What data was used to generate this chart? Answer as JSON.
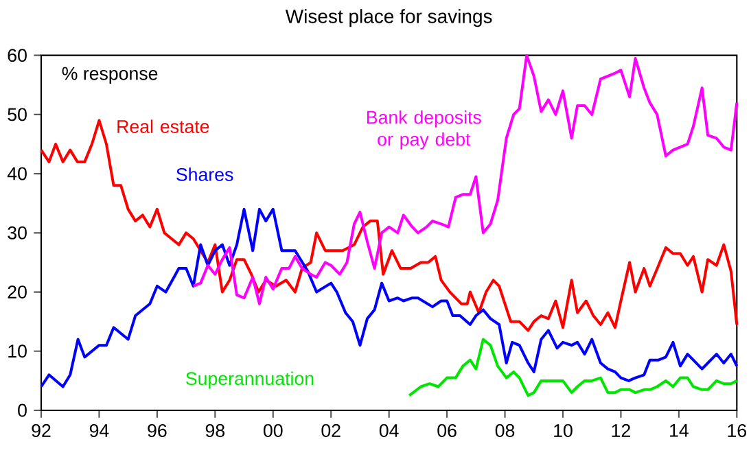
{
  "chart_data": {
    "type": "line",
    "title": "Wisest place for savings",
    "ylabel": "% response",
    "xlim": [
      1992,
      2016
    ],
    "ylim": [
      0,
      60
    ],
    "xticks": [
      {
        "value": 1992,
        "label": "92"
      },
      {
        "value": 1994,
        "label": "94"
      },
      {
        "value": 1996,
        "label": "96"
      },
      {
        "value": 1998,
        "label": "98"
      },
      {
        "value": 2000,
        "label": "00"
      },
      {
        "value": 2002,
        "label": "02"
      },
      {
        "value": 2004,
        "label": "04"
      },
      {
        "value": 2006,
        "label": "06"
      },
      {
        "value": 2008,
        "label": "08"
      },
      {
        "value": 2010,
        "label": "10"
      },
      {
        "value": 2012,
        "label": "12"
      },
      {
        "value": 2014,
        "label": "14"
      },
      {
        "value": 2016,
        "label": "16"
      }
    ],
    "yticks": [
      0,
      10,
      20,
      30,
      40,
      50,
      60
    ],
    "grid": false,
    "marker": "none",
    "line_style": "solid",
    "series": [
      {
        "name": "Real estate",
        "color": "#ff0000",
        "x": [
          1992.0,
          1992.27,
          1992.5,
          1992.75,
          1993.0,
          1993.25,
          1993.5,
          1993.75,
          1994.0,
          1994.25,
          1994.5,
          1994.75,
          1995.0,
          1995.25,
          1995.5,
          1995.75,
          1996.0,
          1996.25,
          1996.5,
          1996.75,
          1997.0,
          1997.25,
          1997.5,
          1997.75,
          1998.0,
          1998.25,
          1998.5,
          1998.75,
          1999.0,
          1999.25,
          1999.5,
          1999.75,
          2000.1,
          2000.45,
          2000.76,
          2001.0,
          2001.3,
          2001.5,
          2001.8,
          2002.05,
          2002.4,
          2002.8,
          2003.1,
          2003.35,
          2003.6,
          2003.8,
          2004.1,
          2004.4,
          2004.75,
          2005.1,
          2005.35,
          2005.6,
          2005.8,
          2006.1,
          2006.5,
          2006.7,
          2006.8,
          2007.1,
          2007.35,
          2007.6,
          2007.8,
          2008.0,
          2008.2,
          2008.5,
          2008.8,
          2009.0,
          2009.25,
          2009.5,
          2009.75,
          2010.0,
          2010.3,
          2010.5,
          2010.8,
          2011.05,
          2011.3,
          2011.55,
          2011.8,
          2012.0,
          2012.3,
          2012.5,
          2012.8,
          2013.0,
          2013.3,
          2013.55,
          2013.8,
          2014.05,
          2014.3,
          2014.5,
          2014.8,
          2015.0,
          2015.3,
          2015.55,
          2015.8,
          2016.0
        ],
        "values": [
          44,
          42,
          45,
          42,
          44,
          42,
          42,
          45,
          49,
          45,
          38,
          38,
          34,
          32,
          33,
          31,
          34,
          30,
          29,
          28,
          30,
          29,
          27,
          25,
          28,
          20,
          22,
          25.5,
          25.5,
          23,
          20,
          22,
          21,
          22,
          20,
          24,
          25,
          30,
          27,
          27,
          27,
          28,
          31,
          32,
          32,
          23,
          27,
          24,
          24,
          25,
          25,
          26,
          22,
          20,
          18,
          18,
          20,
          16.5,
          20,
          22,
          21,
          18,
          15,
          15,
          13.5,
          15,
          16,
          15.5,
          18.5,
          14,
          22,
          16.5,
          18.5,
          16,
          14.5,
          16.5,
          14,
          18.5,
          25,
          20,
          24,
          21,
          24.5,
          27.5,
          26.5,
          26.5,
          24.5,
          26,
          20,
          25.5,
          24.5,
          28,
          23.5,
          14.5
        ]
      },
      {
        "name": "Shares",
        "color": "#0000ff",
        "x": [
          1992.0,
          1992.27,
          1992.75,
          1993.0,
          1993.27,
          1993.5,
          1994.0,
          1994.25,
          1994.5,
          1995.0,
          1995.25,
          1995.75,
          1996.0,
          1996.3,
          1996.75,
          1997.0,
          1997.25,
          1997.5,
          1997.75,
          1998.0,
          1998.25,
          1998.5,
          1998.75,
          1999.0,
          1999.3,
          1999.53,
          1999.75,
          2000.0,
          2000.3,
          2000.76,
          2001.2,
          2001.5,
          2002.0,
          2002.2,
          2002.5,
          2002.75,
          2003.0,
          2003.25,
          2003.5,
          2003.75,
          2004.0,
          2004.3,
          2004.5,
          2004.8,
          2005.0,
          2005.5,
          2005.8,
          2006.0,
          2006.2,
          2006.45,
          2006.8,
          2007.0,
          2007.25,
          2007.5,
          2007.8,
          2008.05,
          2008.25,
          2008.5,
          2008.8,
          2009.0,
          2009.25,
          2009.5,
          2009.8,
          2010.0,
          2010.3,
          2010.5,
          2010.75,
          2011.0,
          2011.3,
          2011.55,
          2011.8,
          2012.0,
          2012.27,
          2012.5,
          2012.8,
          2013.0,
          2013.3,
          2013.55,
          2013.8,
          2014.05,
          2014.3,
          2014.5,
          2014.8,
          2015.0,
          2015.3,
          2015.55,
          2015.8,
          2016.0
        ],
        "values": [
          4,
          6,
          4,
          6,
          12,
          9,
          11,
          11,
          14,
          12,
          16,
          18,
          21,
          20,
          24,
          24,
          21,
          28,
          24.5,
          27,
          28,
          24.5,
          28,
          34,
          27,
          34,
          32,
          34,
          27,
          27,
          23.5,
          20,
          21.5,
          20,
          16.5,
          15,
          11,
          15.5,
          17,
          21.5,
          18.5,
          19,
          18.5,
          19,
          19,
          17.5,
          18.5,
          18.5,
          16,
          16,
          14.5,
          16,
          17,
          15.5,
          14.5,
          8,
          11.5,
          11,
          8,
          6.5,
          12,
          13.5,
          10.5,
          11.5,
          11,
          11.5,
          9.5,
          12,
          8,
          7,
          6.5,
          5.5,
          5,
          5.5,
          6,
          8.5,
          8.5,
          9,
          11.5,
          7.5,
          9.5,
          8.5,
          7,
          8,
          9.5,
          8,
          9.5,
          7.5
        ]
      },
      {
        "name": "Bank deposits or pay debt",
        "color": "#ff00ff",
        "x": [
          1997.25,
          1997.5,
          1997.75,
          1998.0,
          1998.25,
          1998.5,
          1998.75,
          1999.0,
          1999.3,
          1999.53,
          1999.75,
          2000.0,
          2000.3,
          2000.55,
          2000.76,
          2001.0,
          2001.3,
          2001.5,
          2001.8,
          2002.0,
          2002.3,
          2002.55,
          2002.8,
          2003.0,
          2003.25,
          2003.5,
          2003.75,
          2004.0,
          2004.3,
          2004.5,
          2004.8,
          2005.0,
          2005.3,
          2005.5,
          2005.8,
          2006.05,
          2006.3,
          2006.55,
          2006.8,
          2007.0,
          2007.25,
          2007.5,
          2007.75,
          2008.05,
          2008.3,
          2008.5,
          2008.75,
          2009.0,
          2009.25,
          2009.5,
          2009.75,
          2010.0,
          2010.3,
          2010.5,
          2010.75,
          2011.0,
          2011.3,
          2011.55,
          2011.8,
          2012.0,
          2012.3,
          2012.5,
          2012.8,
          2013.0,
          2013.25,
          2013.55,
          2013.8,
          2014.05,
          2014.3,
          2014.5,
          2014.8,
          2015.0,
          2015.3,
          2015.55,
          2015.8,
          2016.0
        ],
        "values": [
          21,
          21.5,
          24.5,
          23,
          25.5,
          27.5,
          19.5,
          19,
          22.5,
          18,
          22.5,
          20.5,
          24,
          24,
          26,
          24,
          23,
          22.5,
          25,
          24.5,
          23,
          25,
          31.5,
          33.5,
          28.5,
          24,
          30,
          31,
          30,
          33,
          31,
          30,
          31,
          32,
          31.5,
          31,
          36,
          36.5,
          36.5,
          39.5,
          30,
          31.5,
          35.5,
          46,
          50,
          51,
          60,
          56.5,
          50.5,
          52.5,
          50,
          54,
          46,
          51.5,
          51.5,
          50,
          56,
          56.5,
          57,
          57.5,
          53,
          59.5,
          54.5,
          52,
          50,
          43,
          44,
          44.5,
          45,
          48,
          54.5,
          46.5,
          46,
          44.5,
          44,
          52
        ]
      },
      {
        "name": "Superannuation",
        "color": "#00e600",
        "x": [
          2004.7,
          2005.1,
          2005.4,
          2005.7,
          2006.0,
          2006.3,
          2006.55,
          2006.8,
          2007.0,
          2007.25,
          2007.5,
          2007.75,
          2008.05,
          2008.3,
          2008.5,
          2008.8,
          2009.0,
          2009.25,
          2009.5,
          2009.75,
          2010.0,
          2010.3,
          2010.5,
          2010.75,
          2011.0,
          2011.3,
          2011.55,
          2011.8,
          2012.0,
          2012.3,
          2012.5,
          2012.8,
          2013.0,
          2013.25,
          2013.55,
          2013.8,
          2014.05,
          2014.3,
          2014.5,
          2014.8,
          2015.0,
          2015.3,
          2015.55,
          2015.8,
          2016.0
        ],
        "values": [
          2.5,
          4,
          4.5,
          4,
          5.5,
          5.5,
          7.5,
          8.5,
          7,
          12,
          11,
          7.5,
          5.5,
          6.5,
          5.5,
          2.5,
          3,
          5,
          5,
          5,
          5,
          3,
          4,
          5,
          5,
          5.5,
          3,
          3,
          3.5,
          3.5,
          3,
          3.5,
          3.5,
          4,
          5,
          4,
          5.5,
          5.5,
          4,
          3.5,
          3.5,
          5,
          4.5,
          4.5,
          5
        ]
      }
    ]
  }
}
